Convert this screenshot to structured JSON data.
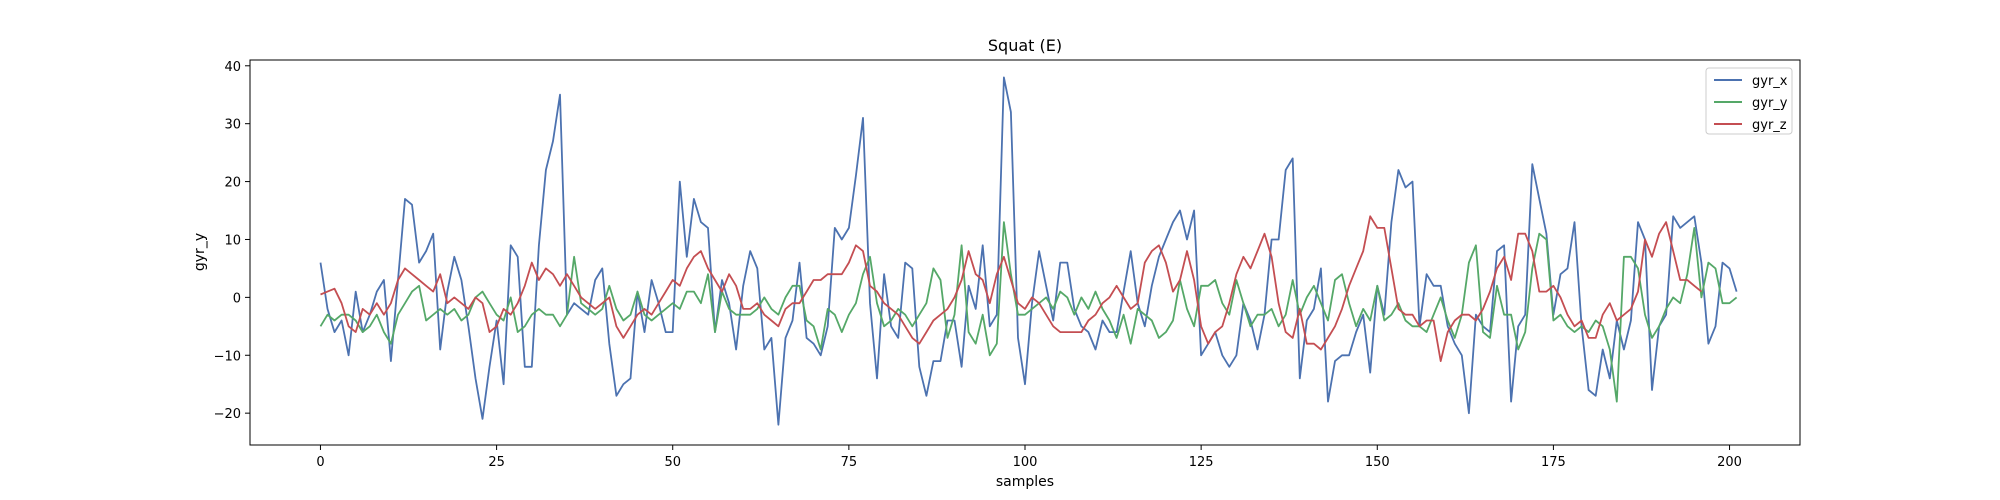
{
  "chart_data": {
    "type": "line",
    "title": "Squat (E)",
    "xlabel": "samples",
    "ylabel": "gyr_y",
    "xlim": [
      -10,
      210
    ],
    "ylim": [
      -25.5,
      41
    ],
    "xticks": [
      0,
      25,
      50,
      75,
      100,
      125,
      150,
      175,
      200
    ],
    "yticks": [
      -20,
      -10,
      0,
      10,
      20,
      30,
      40
    ],
    "grid": false,
    "legend": "top-right",
    "x_start": 0,
    "x_step": 1,
    "series": [
      {
        "name": "gyr_x",
        "color": "#4c72b0",
        "values": [
          6,
          -2,
          -6,
          -4,
          -10,
          1,
          -6,
          -3,
          1,
          3,
          -11,
          3,
          17,
          16,
          6,
          8,
          11,
          -9,
          1,
          7,
          3,
          -5,
          -14,
          -21,
          -12,
          -4,
          -15,
          9,
          7,
          -12,
          -12,
          9,
          22,
          27,
          35,
          -3,
          -1,
          -2,
          -3,
          3,
          5,
          -8,
          -17,
          -15,
          -14,
          1,
          -6,
          3,
          -1,
          -6,
          -6,
          20,
          7,
          17,
          13,
          12,
          -6,
          3,
          -1,
          -9,
          2,
          8,
          5,
          -9,
          -7,
          -22,
          -7,
          -4,
          6,
          -7,
          -8,
          -10,
          -5,
          12,
          10,
          12,
          21,
          31,
          -1,
          -14,
          4,
          -5,
          -7,
          6,
          5,
          -12,
          -17,
          -11,
          -11,
          -4,
          -4,
          -12,
          2,
          -2,
          9,
          -5,
          -3,
          38,
          32,
          -7,
          -15,
          -1,
          8,
          2,
          -4,
          6,
          6,
          -2,
          -5,
          -6,
          -9,
          -4,
          -6,
          -6,
          1,
          8,
          -1,
          -5,
          2,
          7,
          10,
          13,
          15,
          10,
          15,
          -10,
          -8,
          -6,
          -10,
          -12,
          -10,
          -1,
          -4,
          -9,
          -3,
          10,
          10,
          22,
          24,
          -14,
          -4,
          -2,
          5,
          -18,
          -11,
          -10,
          -10,
          -6,
          -3,
          -13,
          2,
          -3,
          13,
          22,
          19,
          20,
          -5,
          4,
          2,
          2,
          -5,
          -8,
          -10,
          -20,
          -3,
          -5,
          -6,
          8,
          9,
          -18,
          -5,
          -3,
          23,
          17,
          11,
          -3,
          4,
          5,
          13,
          -5,
          -16,
          -17,
          -9,
          -14,
          -4,
          -9,
          -4,
          13,
          10,
          -16,
          -5,
          -3,
          14,
          12,
          13,
          14,
          6,
          -8,
          -5,
          6,
          5,
          1
        ]
      },
      {
        "name": "gyr_y",
        "color": "#55a868",
        "values": [
          -5,
          -3,
          -4,
          -3,
          -3,
          -4,
          -6,
          -5,
          -3,
          -6,
          -8,
          -3,
          -1,
          1,
          2,
          -4,
          -3,
          -2,
          -3,
          -2,
          -4,
          -3,
          0,
          1,
          -1,
          -3,
          -4,
          0,
          -6,
          -5,
          -3,
          -2,
          -3,
          -3,
          -5,
          -3,
          7,
          -1,
          -2,
          -3,
          -2,
          2,
          -2,
          -4,
          -3,
          1,
          -3,
          -4,
          -3,
          -2,
          -1,
          -2,
          1,
          1,
          -1,
          4,
          -6,
          1,
          -2,
          -3,
          -3,
          -3,
          -2,
          0,
          -2,
          -3,
          0,
          2,
          2,
          -4,
          -5,
          -9,
          -2,
          -3,
          -6,
          -3,
          -1,
          4,
          7,
          -1,
          -5,
          -4,
          -2,
          -3,
          -5,
          -3,
          -1,
          5,
          3,
          -7,
          -3,
          9,
          -6,
          -8,
          -3,
          -10,
          -8,
          13,
          4,
          -3,
          -3,
          -2,
          -1,
          0,
          -2,
          1,
          0,
          -3,
          0,
          -2,
          1,
          -2,
          -4,
          -7,
          -3,
          -8,
          -2,
          -3,
          -4,
          -7,
          -6,
          -4,
          3,
          -2,
          -5,
          2,
          2,
          3,
          -1,
          -3,
          3,
          -1,
          -5,
          -3,
          -3,
          -2,
          -5,
          -3,
          3,
          -3,
          0,
          2,
          -1,
          -4,
          3,
          4,
          -1,
          -5,
          -2,
          -4,
          2,
          -4,
          -3,
          -1,
          -4,
          -5,
          -5,
          -6,
          -3,
          0,
          -4,
          -7,
          -3,
          6,
          9,
          -6,
          -7,
          2,
          -3,
          -3,
          -9,
          -6,
          5,
          11,
          10,
          -4,
          -3,
          -5,
          -6,
          -5,
          -6,
          -4,
          -5,
          -9,
          -18,
          7,
          7,
          5,
          -3,
          -7,
          -5,
          -2,
          0,
          -1,
          4,
          12,
          0,
          6,
          5,
          -1,
          -1,
          0
        ]
      },
      {
        "name": "gyr_z",
        "color": "#c44e52",
        "values": [
          0.5,
          1,
          1.5,
          -1,
          -5,
          -6,
          -2,
          -3,
          -1,
          -3,
          -1,
          3,
          5,
          4,
          3,
          2,
          1,
          4,
          -1,
          0,
          -1,
          -2,
          0,
          -1,
          -6,
          -5,
          -2,
          -3,
          -1,
          2,
          6,
          3,
          5,
          4,
          2,
          4,
          2,
          0,
          -1,
          -2,
          -1,
          0,
          -5,
          -7,
          -5,
          -3,
          -2,
          -3,
          -1,
          1,
          3,
          2,
          5,
          7,
          8,
          5,
          3,
          1,
          4,
          2,
          -2,
          -2,
          -1,
          -3,
          -4,
          -5,
          -2,
          -1,
          -1,
          1,
          3,
          3,
          4,
          4,
          4,
          6,
          9,
          8,
          2,
          1,
          -1,
          -2,
          -3,
          -5,
          -7,
          -8,
          -6,
          -4,
          -3,
          -2,
          0,
          3,
          8,
          4,
          3,
          -1,
          4,
          7,
          3,
          -1,
          -2,
          0,
          -1,
          -3,
          -5,
          -6,
          -6,
          -6,
          -6,
          -4,
          -3,
          -1,
          0,
          2,
          0,
          -2,
          -1,
          6,
          8,
          9,
          6,
          1,
          3,
          8,
          3,
          -5,
          -8,
          -6,
          -5,
          -1,
          4,
          7,
          5,
          8,
          11,
          7,
          -1,
          -6,
          -7,
          -2,
          -8,
          -8,
          -9,
          -7,
          -5,
          -2,
          2,
          5,
          8,
          14,
          12,
          12,
          5,
          -2,
          -3,
          -3,
          -5,
          -4,
          -4,
          -11,
          -6,
          -4,
          -3,
          -3,
          -4,
          -2,
          1,
          5,
          7,
          3,
          11,
          11,
          8,
          1,
          1,
          2,
          0,
          -3,
          -5,
          -4,
          -7,
          -7,
          -3,
          -1,
          -4,
          -3,
          -2,
          1,
          10,
          7,
          11,
          13,
          8,
          3,
          3,
          2,
          1
        ]
      }
    ]
  }
}
